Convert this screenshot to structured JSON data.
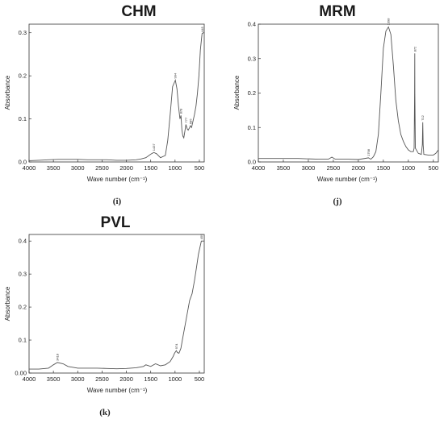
{
  "chart_data": [
    {
      "type": "line",
      "title": "CHM",
      "panel_label": "(i)",
      "xlabel": "Wave number (cm⁻¹)",
      "ylabel": "Absorbance",
      "xlim": [
        4000,
        400
      ],
      "ylim": [
        0,
        0.32
      ],
      "xticks": [
        4000,
        3500,
        3000,
        2500,
        2000,
        1500,
        1000,
        500
      ],
      "yticks": [
        0.0,
        0.1,
        0.2,
        0.3
      ],
      "ytick_labels": [
        "0.0",
        "0.1",
        "0.2",
        "0.3"
      ],
      "x": [
        4000,
        3800,
        3600,
        3400,
        3200,
        3000,
        2800,
        2600,
        2400,
        2200,
        2000,
        1800,
        1700,
        1600,
        1500,
        1437,
        1380,
        1300,
        1200,
        1150,
        1100,
        1050,
        1000,
        994,
        960,
        930,
        900,
        878,
        860,
        840,
        820,
        800,
        777,
        750,
        730,
        700,
        685,
        660,
        630,
        600,
        570,
        540,
        510,
        480,
        445,
        420,
        400
      ],
      "y": [
        0.003,
        0.004,
        0.005,
        0.006,
        0.006,
        0.006,
        0.005,
        0.005,
        0.005,
        0.004,
        0.004,
        0.005,
        0.007,
        0.01,
        0.018,
        0.022,
        0.019,
        0.01,
        0.015,
        0.05,
        0.11,
        0.175,
        0.188,
        0.19,
        0.17,
        0.13,
        0.1,
        0.108,
        0.075,
        0.06,
        0.056,
        0.07,
        0.087,
        0.077,
        0.074,
        0.08,
        0.084,
        0.08,
        0.095,
        0.11,
        0.13,
        0.16,
        0.2,
        0.26,
        0.298,
        0.3,
        0.3
      ],
      "peak_labels": [
        {
          "x": 1437,
          "y": 0.022,
          "text": "1437"
        },
        {
          "x": 994,
          "y": 0.19,
          "text": "994"
        },
        {
          "x": 878,
          "y": 0.108,
          "text": "878"
        },
        {
          "x": 777,
          "y": 0.087,
          "text": "777"
        },
        {
          "x": 685,
          "y": 0.084,
          "text": "685"
        },
        {
          "x": 445,
          "y": 0.298,
          "text": "445"
        }
      ]
    },
    {
      "type": "line",
      "title": "MRM",
      "panel_label": "(j)",
      "xlabel": "Wave number (cm⁻¹)",
      "ylabel": "Absorbance",
      "xlim": [
        4000,
        400
      ],
      "ylim": [
        0,
        0.4
      ],
      "xticks": [
        4000,
        3500,
        3000,
        2500,
        2000,
        1500,
        1000,
        500
      ],
      "yticks": [
        0.0,
        0.1,
        0.2,
        0.3,
        0.4
      ],
      "ytick_labels": [
        "0.0",
        "0.1",
        "0.2",
        "0.3",
        "0.4"
      ],
      "x": [
        4000,
        3600,
        3200,
        2800,
        2600,
        2530,
        2460,
        2200,
        2000,
        1798,
        1750,
        1700,
        1650,
        1600,
        1550,
        1500,
        1450,
        1398,
        1350,
        1300,
        1250,
        1200,
        1150,
        1100,
        1050,
        1000,
        950,
        900,
        885,
        875,
        872,
        869,
        860,
        800,
        740,
        720,
        712,
        704,
        690,
        600,
        500,
        450,
        400
      ],
      "y": [
        0.01,
        0.01,
        0.01,
        0.008,
        0.008,
        0.014,
        0.008,
        0.008,
        0.007,
        0.012,
        0.008,
        0.015,
        0.03,
        0.08,
        0.2,
        0.33,
        0.38,
        0.392,
        0.37,
        0.28,
        0.18,
        0.12,
        0.08,
        0.06,
        0.045,
        0.035,
        0.03,
        0.03,
        0.04,
        0.2,
        0.315,
        0.2,
        0.04,
        0.025,
        0.022,
        0.05,
        0.115,
        0.05,
        0.022,
        0.02,
        0.02,
        0.025,
        0.035
      ],
      "peak_labels": [
        {
          "x": 1798,
          "y": 0.012,
          "text": "1798"
        },
        {
          "x": 1398,
          "y": 0.392,
          "text": "1398"
        },
        {
          "x": 872,
          "y": 0.315,
          "text": "872"
        },
        {
          "x": 712,
          "y": 0.115,
          "text": "712"
        }
      ]
    },
    {
      "type": "line",
      "title": "PVL",
      "panel_label": "(k)",
      "xlabel": "Wave number (cm⁻¹)",
      "ylabel": "Absorbance",
      "xlim": [
        4000,
        400
      ],
      "ylim": [
        0,
        0.42
      ],
      "xticks": [
        4000,
        3500,
        3000,
        2500,
        2000,
        1500,
        1000,
        500
      ],
      "yticks": [
        0.0,
        0.1,
        0.2,
        0.3,
        0.4
      ],
      "ytick_labels": [
        "0.00",
        "0.1",
        "0.2",
        "0.3",
        "0.4"
      ],
      "x": [
        4000,
        3800,
        3600,
        3500,
        3418,
        3300,
        3200,
        3000,
        2800,
        2600,
        2400,
        2200,
        2000,
        1800,
        1650,
        1600,
        1500,
        1400,
        1300,
        1200,
        1100,
        1040,
        1010,
        974,
        950,
        920,
        880,
        850,
        800,
        750,
        700,
        650,
        600,
        560,
        520,
        490,
        459,
        430,
        400
      ],
      "y": [
        0.012,
        0.012,
        0.015,
        0.025,
        0.032,
        0.028,
        0.02,
        0.015,
        0.015,
        0.015,
        0.014,
        0.013,
        0.014,
        0.016,
        0.02,
        0.025,
        0.02,
        0.028,
        0.022,
        0.025,
        0.035,
        0.05,
        0.06,
        0.068,
        0.062,
        0.06,
        0.075,
        0.1,
        0.14,
        0.18,
        0.22,
        0.24,
        0.28,
        0.32,
        0.36,
        0.38,
        0.4,
        0.4,
        0.4
      ],
      "peak_labels": [
        {
          "x": 3418,
          "y": 0.032,
          "text": "3418"
        },
        {
          "x": 974,
          "y": 0.068,
          "text": "974"
        },
        {
          "x": 459,
          "y": 0.4,
          "text": "459"
        }
      ]
    }
  ]
}
